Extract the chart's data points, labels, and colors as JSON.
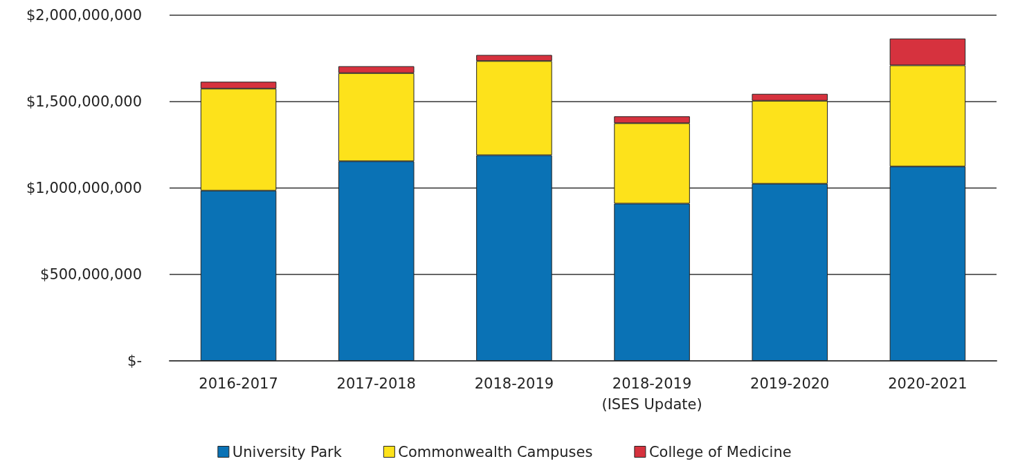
{
  "chart_data": {
    "type": "bar",
    "stacked": true,
    "categories": [
      "2016-2017",
      "2017-2018",
      "2018-2019",
      "2018-2019\n(ISES Update)",
      "2019-2020",
      "2020-2021"
    ],
    "series": [
      {
        "name": "University Park",
        "color": "#0a72b5",
        "values": [
          985000000,
          1155000000,
          1190000000,
          910000000,
          1025000000,
          1125000000
        ]
      },
      {
        "name": "Commonwealth Campuses",
        "color": "#fde21b",
        "values": [
          590000000,
          510000000,
          545000000,
          465000000,
          480000000,
          585000000
        ]
      },
      {
        "name": "College of Medicine",
        "color": "#d6323e",
        "values": [
          40000000,
          40000000,
          35000000,
          40000000,
          40000000,
          155000000
        ]
      }
    ],
    "ylim": [
      0,
      2000000000
    ],
    "yticks": [
      {
        "value": 0,
        "label": "$-"
      },
      {
        "value": 500000000,
        "label": "$500,000,000"
      },
      {
        "value": 1000000000,
        "label": "$1,000,000,000"
      },
      {
        "value": 1500000000,
        "label": "$1,500,000,000"
      },
      {
        "value": 2000000000,
        "label": "$2,000,000,000"
      }
    ],
    "grid": "y",
    "legend": "bottom"
  }
}
